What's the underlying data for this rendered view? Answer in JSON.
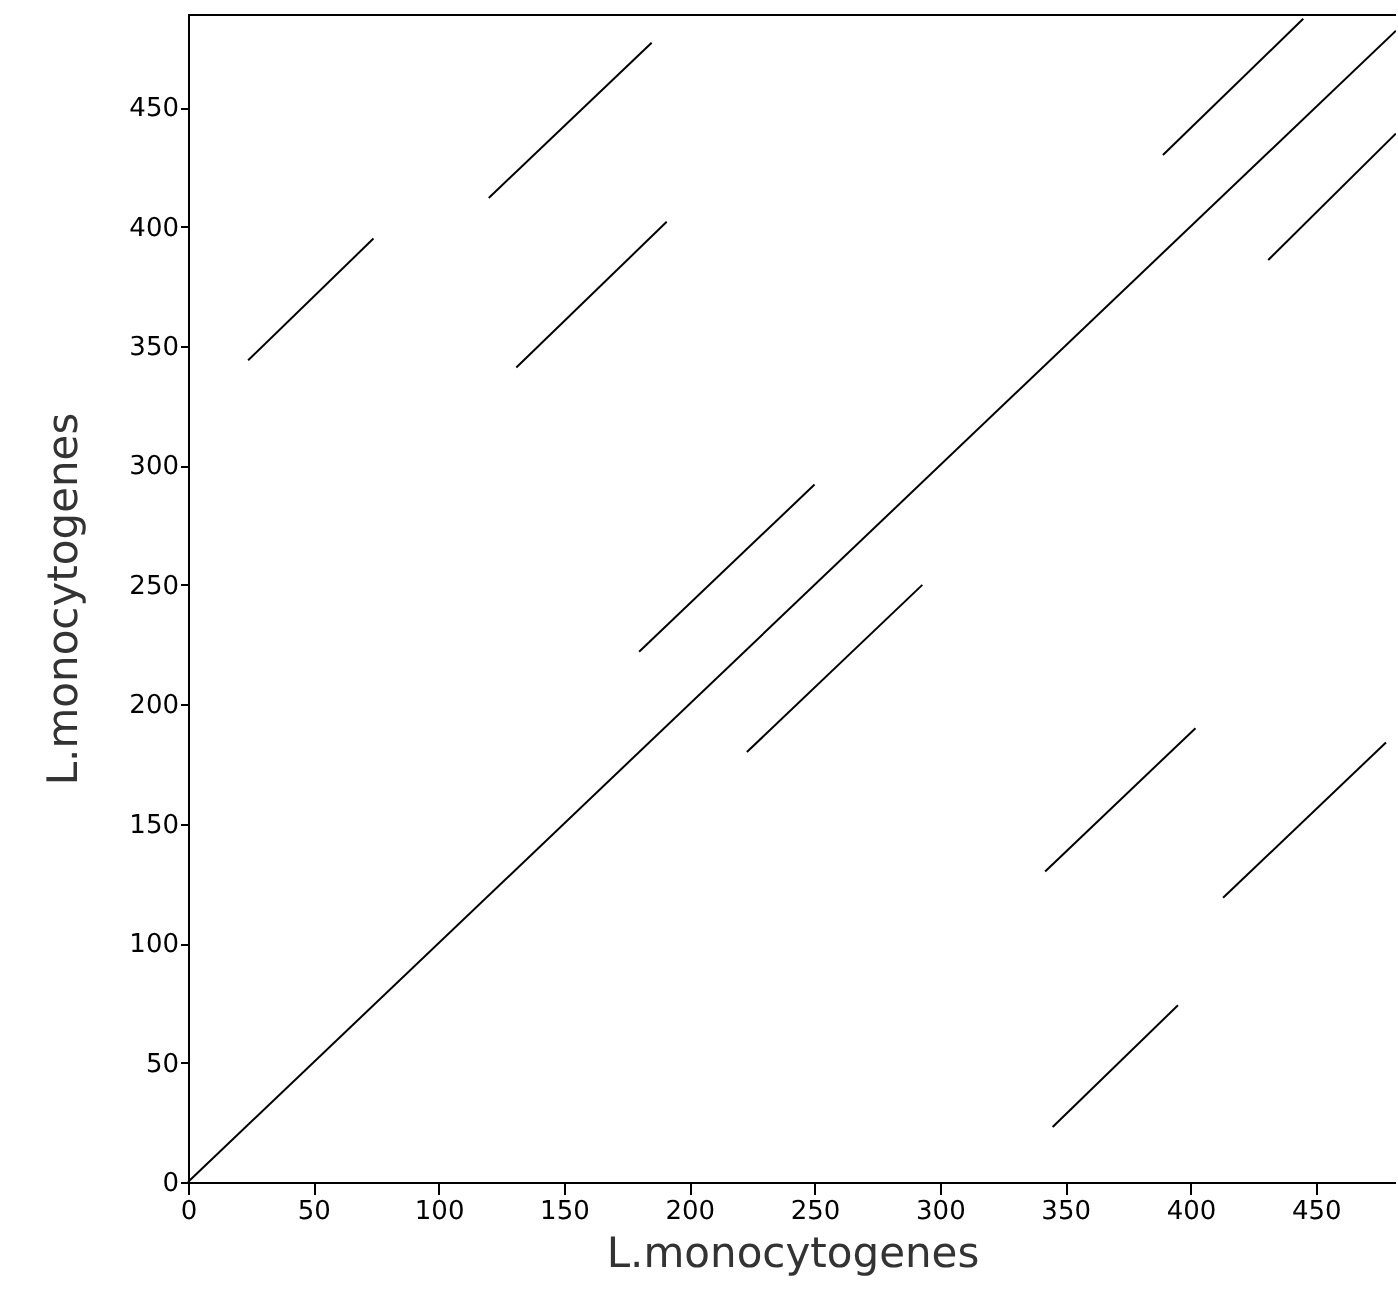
{
  "chart_data": {
    "type": "line",
    "xlabel": "L.monocytogenes",
    "ylabel": "L.monocytogenes",
    "xlim": [
      0,
      482
    ],
    "ylim": [
      0,
      489
    ],
    "xticks": [
      0,
      50,
      100,
      150,
      200,
      250,
      300,
      350,
      400,
      450
    ],
    "yticks": [
      0,
      50,
      100,
      150,
      200,
      250,
      300,
      350,
      400,
      450
    ],
    "grid": false,
    "marker": "none",
    "line_style": "solid",
    "series": [
      {
        "color": "#000000",
        "x": [
          0,
          482
        ],
        "values": [
          0,
          482
        ]
      },
      {
        "color": "#000000",
        "x": [
          24,
          74
        ],
        "values": [
          344,
          395
        ]
      },
      {
        "color": "#000000",
        "x": [
          131,
          191
        ],
        "values": [
          341,
          402
        ]
      },
      {
        "color": "#000000",
        "x": [
          120,
          185
        ],
        "values": [
          412,
          477
        ]
      },
      {
        "color": "#000000",
        "x": [
          389,
          445
        ],
        "values": [
          430,
          487
        ]
      },
      {
        "color": "#000000",
        "x": [
          431,
          482
        ],
        "values": [
          386,
          439
        ]
      },
      {
        "color": "#000000",
        "x": [
          180,
          250
        ],
        "values": [
          222,
          292
        ]
      },
      {
        "color": "#000000",
        "x": [
          223,
          293
        ],
        "values": [
          180,
          250
        ]
      },
      {
        "color": "#000000",
        "x": [
          342,
          402
        ],
        "values": [
          130,
          190
        ]
      },
      {
        "color": "#000000",
        "x": [
          413,
          478
        ],
        "values": [
          119,
          184
        ]
      },
      {
        "color": "#000000",
        "x": [
          345,
          395
        ],
        "values": [
          23,
          74
        ]
      }
    ]
  }
}
